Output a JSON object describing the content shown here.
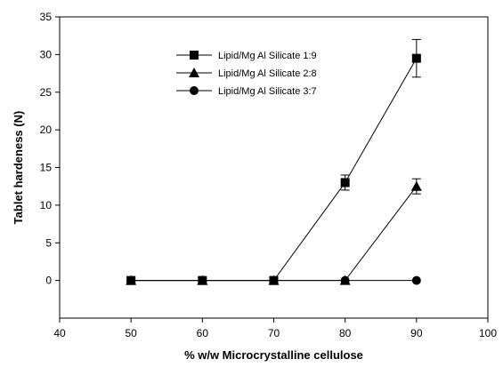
{
  "chart_data": {
    "type": "line",
    "title": "",
    "xlabel": "% w/w Microcrystalline cellulose",
    "ylabel": "Tablet hardeness (N)",
    "xlim": [
      40,
      100
    ],
    "ylim": [
      -5,
      35
    ],
    "xticks": [
      40,
      50,
      60,
      70,
      80,
      90,
      100
    ],
    "yticks": [
      0,
      5,
      10,
      15,
      20,
      25,
      30,
      35
    ],
    "grid": false,
    "legend_position": "top-center",
    "x": [
      50,
      60,
      70,
      80,
      90
    ],
    "series": [
      {
        "name": "Lipid/Mg Al Silicate 1:9",
        "marker": "square",
        "values": [
          0,
          0,
          0,
          13,
          29.5
        ],
        "errors": [
          0,
          0,
          0,
          1,
          2.5
        ]
      },
      {
        "name": "Lipid/Mg Al Silicate 2:8",
        "marker": "triangle",
        "values": [
          0,
          0,
          0,
          0,
          12.5
        ],
        "errors": [
          0,
          0,
          0,
          0,
          1
        ]
      },
      {
        "name": "Lipid/Mg Al Silicate 3:7",
        "marker": "circle",
        "values": [
          0,
          0,
          0,
          0,
          0
        ],
        "errors": [
          0,
          0,
          0,
          0,
          0
        ]
      }
    ],
    "line_color": "#000000"
  }
}
